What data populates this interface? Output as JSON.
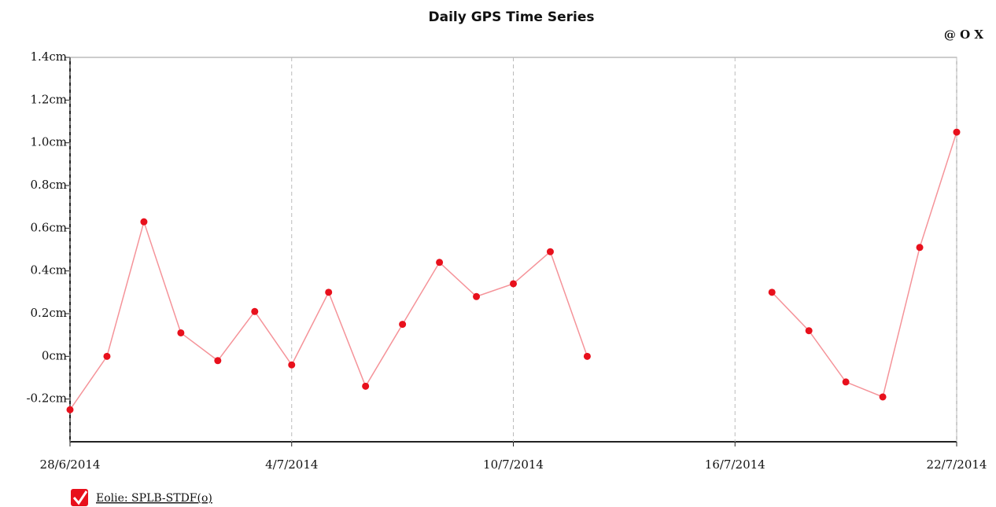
{
  "chart_data": {
    "type": "line",
    "title": "Daily GPS Time Series",
    "toolbar": "@ O X",
    "x": [
      "28/6/2014",
      "29/6/2014",
      "30/6/2014",
      "1/7/2014",
      "2/7/2014",
      "3/7/2014",
      "4/7/2014",
      "5/7/2014",
      "6/7/2014",
      "7/7/2014",
      "8/7/2014",
      "9/7/2014",
      "10/7/2014",
      "11/7/2014",
      "12/7/2014",
      "13/7/2014",
      "14/7/2014",
      "15/7/2014",
      "16/7/2014",
      "17/7/2014",
      "18/7/2014",
      "19/7/2014",
      "20/7/2014",
      "21/7/2014",
      "22/7/2014"
    ],
    "series": [
      {
        "name": "Eolie: SPLB-STDF(o)",
        "color": "#e8101c",
        "values": [
          -0.25,
          0.0,
          0.63,
          0.11,
          -0.02,
          0.21,
          -0.04,
          0.3,
          -0.14,
          0.15,
          0.44,
          0.28,
          0.34,
          0.49,
          0.0,
          null,
          null,
          null,
          null,
          0.3,
          0.12,
          -0.12,
          -0.19,
          0.51,
          1.05
        ]
      }
    ],
    "xlim": [
      "28/6/2014",
      "22/7/2014"
    ],
    "xticks": [
      "28/6/2014",
      "4/7/2014",
      "10/7/2014",
      "16/7/2014",
      "22/7/2014"
    ],
    "ylim": [
      -0.4,
      1.4
    ],
    "yticks": [
      {
        "value": -0.2,
        "label": "-0.2cm"
      },
      {
        "value": 0,
        "label": "0cm"
      },
      {
        "value": 0.2,
        "label": "0.2cm"
      },
      {
        "value": 0.4,
        "label": "0.4cm"
      },
      {
        "value": 0.6,
        "label": "0.6cm"
      },
      {
        "value": 0.8,
        "label": "0.8cm"
      },
      {
        "value": 1.0,
        "label": "1.0cm"
      },
      {
        "value": 1.2,
        "label": "1.2cm"
      },
      {
        "value": 1.4,
        "label": "1.4cm"
      }
    ],
    "grid": "x"
  }
}
